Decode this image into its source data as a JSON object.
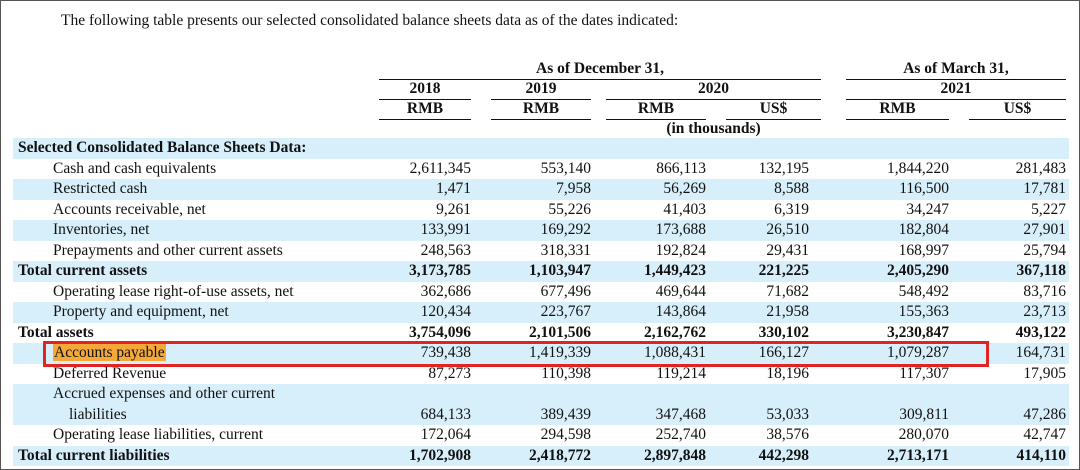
{
  "intro": "The following table presents our selected consolidated balance sheets data as of the dates indicated:",
  "header": {
    "groups": [
      "As of December 31,",
      "As of March 31,"
    ],
    "years": [
      "2018",
      "2019",
      "2020",
      "2021"
    ],
    "currencies": [
      "RMB",
      "RMB",
      "RMB",
      "US$",
      "RMB",
      "US$"
    ],
    "unit_note": "(in thousands)"
  },
  "table": {
    "section_title": "Selected Consolidated Balance Sheets Data:",
    "rows": [
      {
        "label": "Cash and cash equivalents",
        "values": [
          "2,611,345",
          "553,140",
          "866,113",
          "132,195",
          "1,844,220",
          "281,483"
        ]
      },
      {
        "label": "Restricted cash",
        "values": [
          "1,471",
          "7,958",
          "56,269",
          "8,588",
          "116,500",
          "17,781"
        ]
      },
      {
        "label": "Accounts receivable, net",
        "values": [
          "9,261",
          "55,226",
          "41,403",
          "6,319",
          "34,247",
          "5,227"
        ]
      },
      {
        "label": "Inventories, net",
        "values": [
          "133,991",
          "169,292",
          "173,688",
          "26,510",
          "182,804",
          "27,901"
        ]
      },
      {
        "label": "Prepayments and other current assets",
        "values": [
          "248,563",
          "318,331",
          "192,824",
          "29,431",
          "168,997",
          "25,794"
        ]
      },
      {
        "label": "Total current assets",
        "total": true,
        "values": [
          "3,173,785",
          "1,103,947",
          "1,449,423",
          "221,225",
          "2,405,290",
          "367,118"
        ]
      },
      {
        "label": "Operating lease right-of-use assets, net",
        "values": [
          "362,686",
          "677,496",
          "469,644",
          "71,682",
          "548,492",
          "83,716"
        ]
      },
      {
        "label": "Property and equipment, net",
        "values": [
          "120,434",
          "223,767",
          "143,864",
          "21,958",
          "155,363",
          "23,713"
        ]
      },
      {
        "label": "Total assets",
        "total": true,
        "values": [
          "3,754,096",
          "2,101,506",
          "2,162,762",
          "330,102",
          "3,230,847",
          "493,122"
        ]
      },
      {
        "label": "Accounts payable",
        "highlighted": true,
        "values": [
          "739,438",
          "1,419,339",
          "1,088,431",
          "166,127",
          "1,079,287",
          "164,731"
        ]
      },
      {
        "label": "Deferred Revenue",
        "values": [
          "87,273",
          "110,398",
          "119,214",
          "18,196",
          "117,307",
          "17,905"
        ]
      },
      {
        "label_lines": [
          "Accrued expenses and other current",
          "liabilities"
        ],
        "values": [
          "684,133",
          "389,439",
          "347,468",
          "53,033",
          "309,811",
          "47,286"
        ]
      },
      {
        "label": "Operating lease liabilities, current",
        "values": [
          "172,064",
          "294,598",
          "252,740",
          "38,576",
          "280,070",
          "42,747"
        ]
      },
      {
        "label": "Total current liabilities",
        "total": true,
        "values": [
          "1,702,908",
          "2,418,772",
          "2,897,848",
          "442,298",
          "2,713,171",
          "414,110"
        ]
      }
    ]
  }
}
